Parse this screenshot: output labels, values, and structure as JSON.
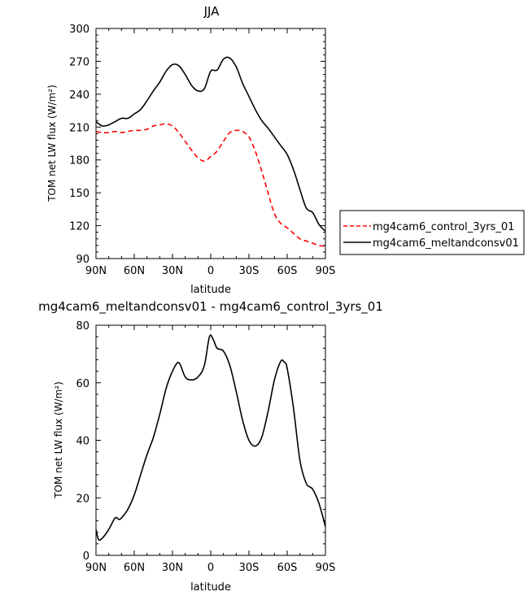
{
  "chart_data": [
    {
      "type": "line",
      "title": "JJA",
      "xlabel": "latitude",
      "ylabel": "TOM net LW flux (W/m²)",
      "xlim": [
        -90,
        90
      ],
      "ylim": [
        90,
        300
      ],
      "x_ticks": [
        -90,
        -60,
        -30,
        0,
        30,
        60,
        90
      ],
      "x_tick_labels": [
        "90N",
        "60N",
        "30N",
        "0",
        "30S",
        "60S",
        "90S"
      ],
      "y_ticks": [
        90,
        120,
        150,
        180,
        210,
        240,
        270,
        300
      ],
      "y_tick_labels": [
        "90",
        "120",
        "150",
        "180",
        "210",
        "240",
        "270",
        "300"
      ],
      "grid": false,
      "legend_position": "right",
      "series": [
        {
          "name": "mg4cam6_control_3yrs_01",
          "color": "#ff0000",
          "dash": "dashed",
          "x": [
            -90,
            -85,
            -80,
            -75,
            -70,
            -65,
            -60,
            -55,
            -50,
            -45,
            -40,
            -35,
            -30,
            -25,
            -20,
            -15,
            -10,
            -5,
            0,
            5,
            10,
            15,
            20,
            25,
            30,
            35,
            40,
            45,
            50,
            55,
            60,
            65,
            70,
            75,
            80,
            85,
            90
          ],
          "y": [
            206,
            205,
            205,
            206,
            205,
            206,
            207,
            207,
            208,
            211,
            212,
            213,
            211,
            205,
            197,
            189,
            182,
            179,
            183,
            188,
            197,
            205,
            207,
            206,
            201,
            188,
            170,
            150,
            131,
            122,
            118,
            113,
            108,
            106,
            104,
            102,
            101
          ]
        },
        {
          "name": "mg4cam6_meltandconsv01",
          "color": "#000000",
          "dash": "solid",
          "x": [
            -90,
            -85,
            -80,
            -75,
            -70,
            -65,
            -60,
            -55,
            -50,
            -45,
            -40,
            -35,
            -30,
            -25,
            -20,
            -15,
            -10,
            -5,
            0,
            5,
            10,
            15,
            20,
            25,
            30,
            35,
            40,
            45,
            50,
            55,
            60,
            65,
            70,
            75,
            80,
            85,
            90
          ],
          "y": [
            215,
            211,
            212,
            215,
            218,
            218,
            222,
            226,
            234,
            243,
            251,
            261,
            267,
            266,
            258,
            248,
            243,
            245,
            261,
            262,
            272,
            273,
            265,
            250,
            238,
            226,
            216,
            209,
            201,
            193,
            185,
            171,
            153,
            136,
            132,
            121,
            115
          ]
        }
      ]
    },
    {
      "type": "line",
      "title": "mg4cam6_meltandconsv01 - mg4cam6_control_3yrs_01",
      "xlabel": "latitude",
      "ylabel": "TOM net LW flux (W/m²)",
      "xlim": [
        -90,
        90
      ],
      "ylim": [
        0,
        80
      ],
      "x_ticks": [
        -90,
        -60,
        -30,
        0,
        30,
        60,
        90
      ],
      "x_tick_labels": [
        "90N",
        "60N",
        "30N",
        "0",
        "30S",
        "60S",
        "90S"
      ],
      "y_ticks": [
        0,
        20,
        40,
        60,
        80
      ],
      "y_tick_labels": [
        "0",
        "20",
        "40",
        "60",
        "80"
      ],
      "grid": false,
      "series": [
        {
          "color": "#000000",
          "dash": "solid",
          "x": [
            -90,
            -88,
            -85,
            -80,
            -75,
            -72,
            -70,
            -65,
            -60,
            -55,
            -50,
            -45,
            -40,
            -35,
            -30,
            -25,
            -20,
            -15,
            -10,
            -5,
            -1,
            2,
            5,
            10,
            15,
            20,
            25,
            30,
            35,
            40,
            45,
            50,
            55,
            58,
            60,
            65,
            70,
            75,
            80,
            85,
            90
          ],
          "y": [
            9,
            5.5,
            6,
            9,
            13,
            12.5,
            13,
            16,
            21,
            28,
            35,
            41,
            49,
            58,
            64,
            67,
            62,
            61,
            62,
            66,
            76,
            75,
            72,
            71,
            66,
            57,
            47,
            40,
            38,
            41,
            50,
            61,
            67.5,
            67,
            65,
            51,
            33,
            25,
            23,
            18,
            10
          ]
        }
      ]
    }
  ]
}
